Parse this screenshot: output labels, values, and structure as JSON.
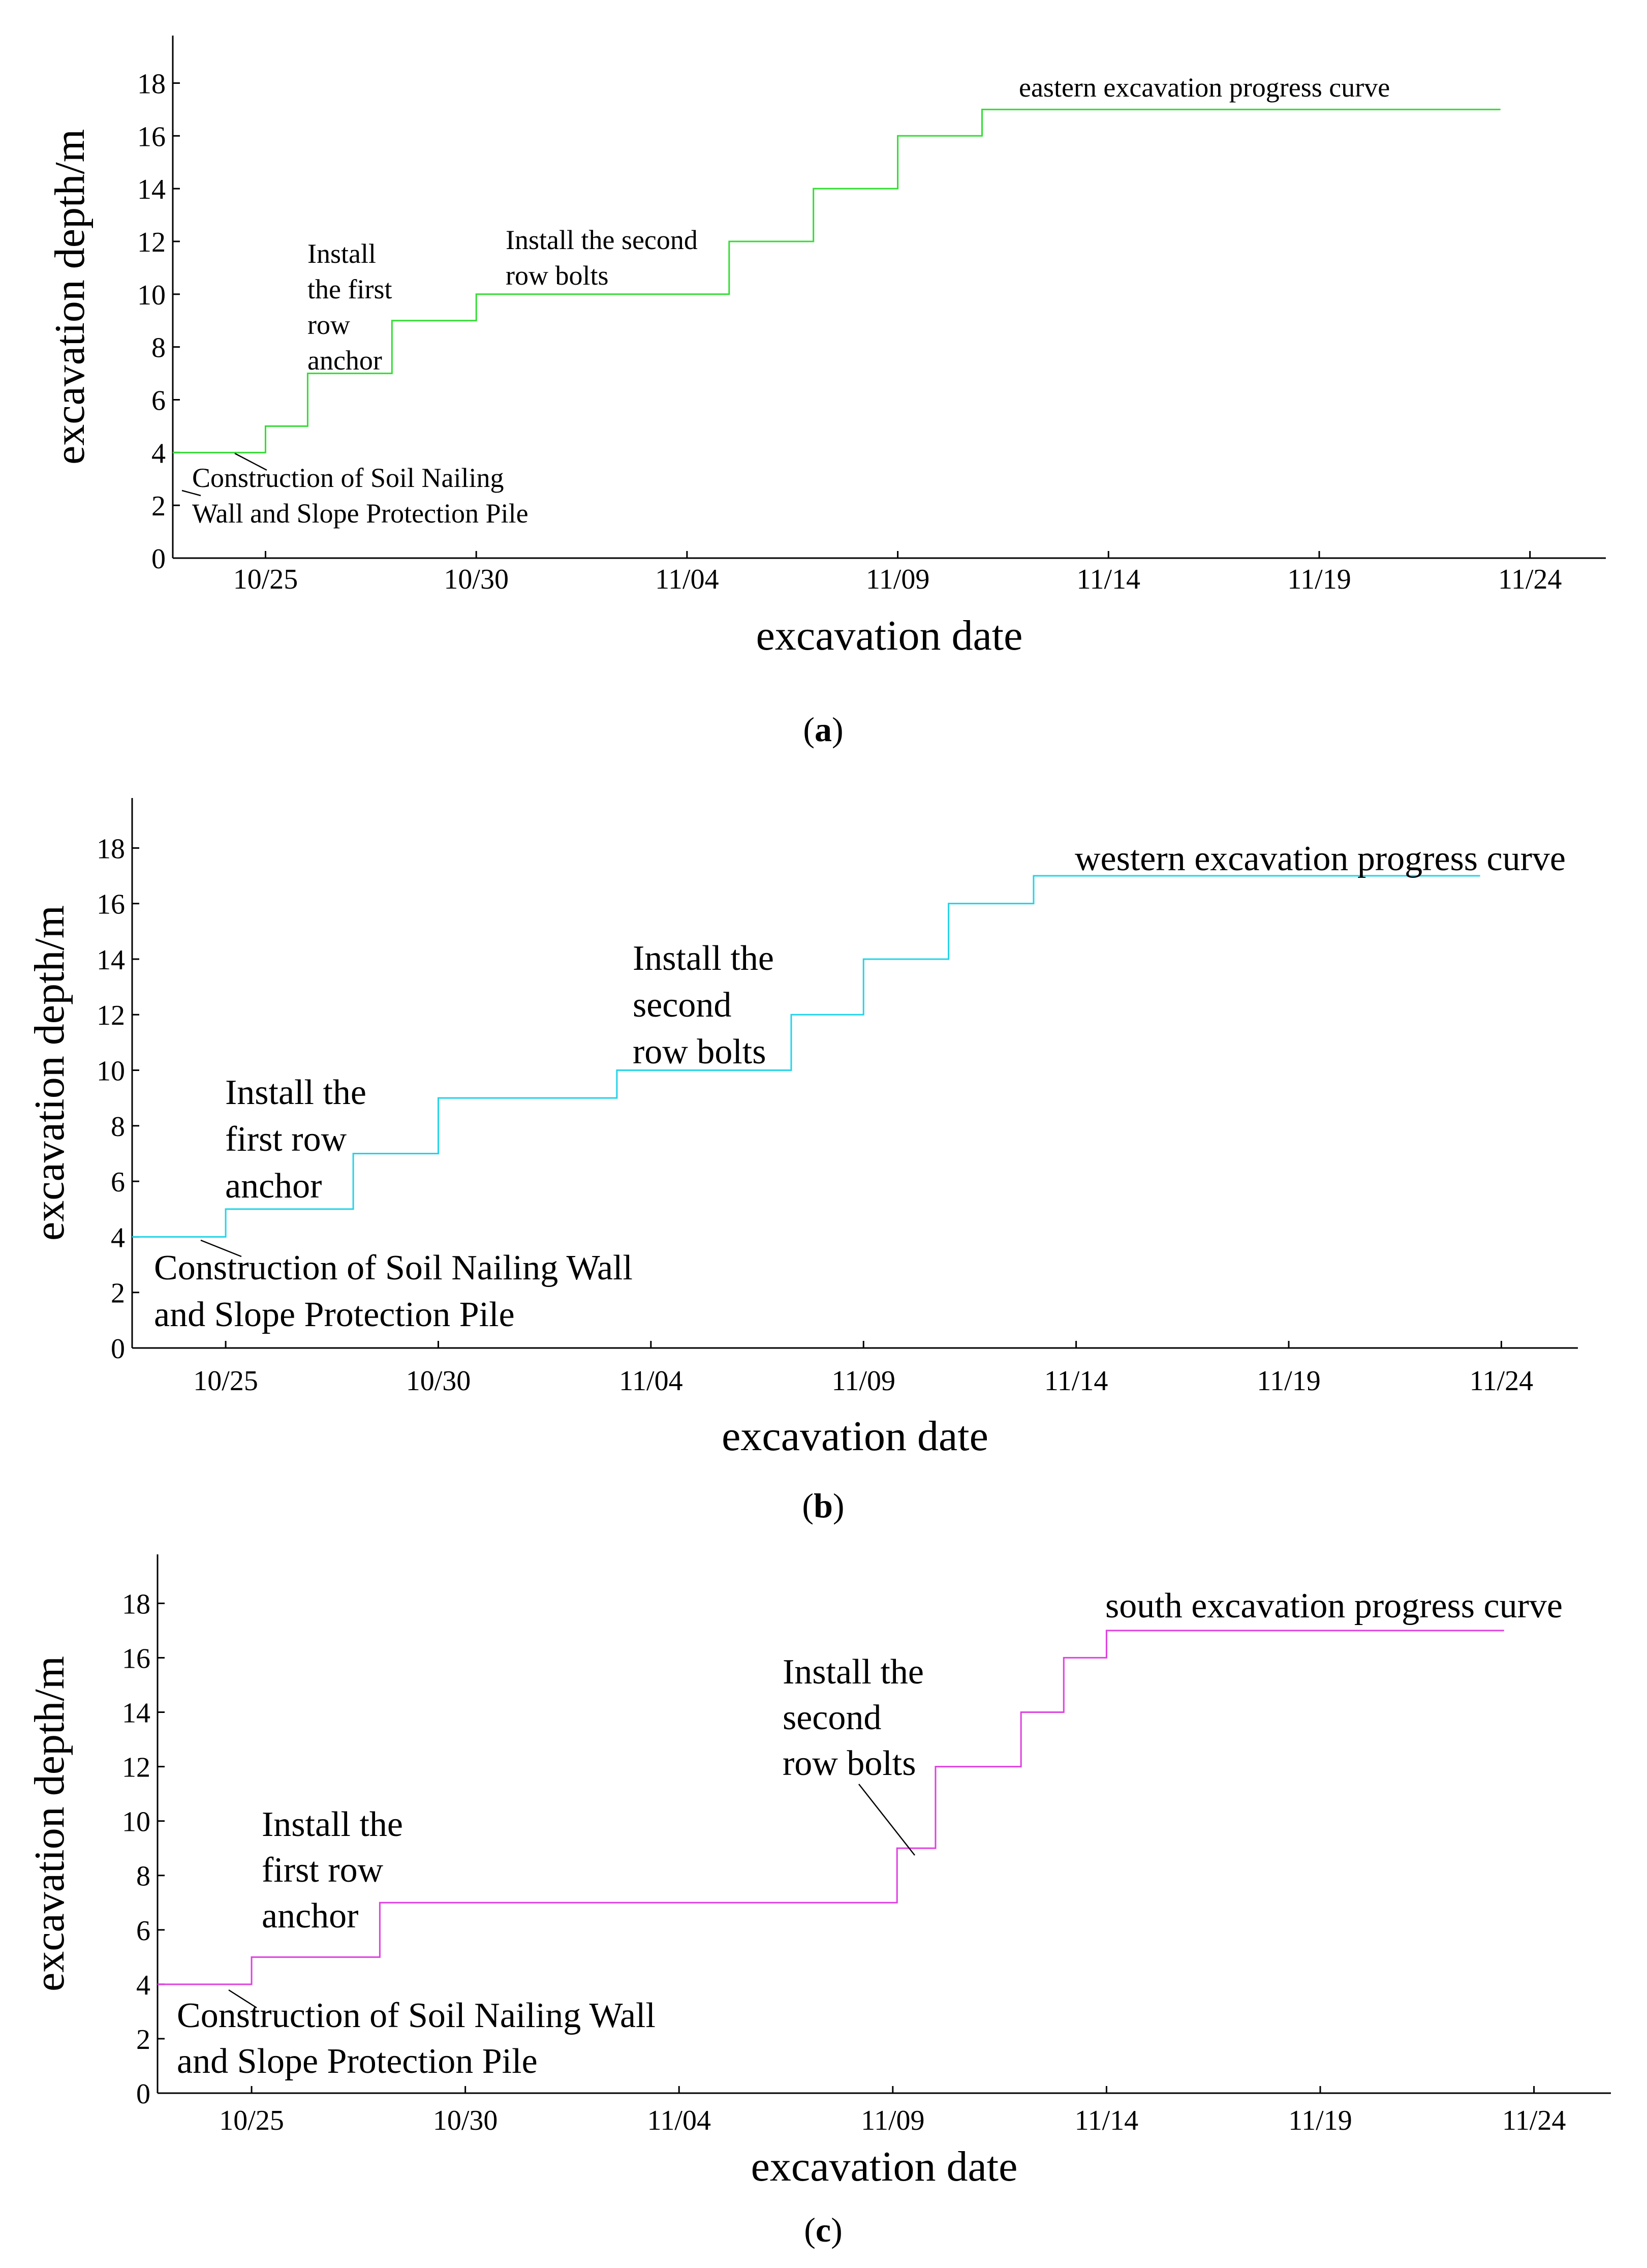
{
  "figure": {
    "panel_labels": [
      {
        "open": "(",
        "letter": "a",
        "close": ")"
      },
      {
        "open": "(",
        "letter": "b",
        "close": ")"
      },
      {
        "open": "(",
        "letter": "c",
        "close": ")"
      }
    ]
  },
  "chart_data": [
    {
      "type": "line",
      "step": "post",
      "panel": "a",
      "xlabel": "excavation date",
      "ylabel": "excavation depth/m",
      "x_unit": "days since 10/25",
      "xlim": [
        -2.2,
        31.8
      ],
      "ylim": [
        0,
        19.8
      ],
      "xticks": [
        0,
        5,
        10,
        15,
        20,
        25,
        30
      ],
      "xtick_labels": [
        "10/25",
        "10/30",
        "11/04",
        "11/09",
        "11/14",
        "11/19",
        "11/24"
      ],
      "yticks": [
        0,
        2,
        4,
        6,
        8,
        10,
        12,
        14,
        16,
        18
      ],
      "ytick_labels": [
        "0",
        "2",
        "4",
        "6",
        "8",
        "10",
        "12",
        "14",
        "16",
        "18"
      ],
      "series": [
        {
          "name": "eastern excavation progress curve",
          "color": "#33dd33",
          "x": [
            -2.2,
            0,
            1,
            3,
            5,
            11,
            13,
            15,
            17,
            29.3
          ],
          "y": [
            4,
            5,
            7,
            9,
            10,
            12,
            14,
            16,
            17,
            17
          ]
        }
      ],
      "annotations": {
        "curve": [
          "eastern  excavation progress curve"
        ],
        "first_row": [
          "Install",
          "the first",
          "row",
          "anchor"
        ],
        "second_row": [
          "Install the second",
          "row bolts"
        ],
        "construction": [
          "Construction of Soil Nailing",
          "Wall and Slope Protection Pile"
        ]
      }
    },
    {
      "type": "line",
      "step": "post",
      "panel": "b",
      "xlabel": "excavation date",
      "ylabel": "excavation depth/m",
      "x_unit": "days since 10/25",
      "xlim": [
        -2.2,
        31.8
      ],
      "ylim": [
        0,
        19.8
      ],
      "xticks": [
        0,
        5,
        10,
        15,
        20,
        25,
        30
      ],
      "xtick_labels": [
        "10/25",
        "10/30",
        "11/04",
        "11/09",
        "11/14",
        "11/19",
        "11/24"
      ],
      "yticks": [
        0,
        2,
        4,
        6,
        8,
        10,
        12,
        14,
        16,
        18
      ],
      "ytick_labels": [
        "0",
        "2",
        "4",
        "6",
        "8",
        "10",
        "12",
        "14",
        "16",
        "18"
      ],
      "series": [
        {
          "name": "western excavation progress curve",
          "color": "#22d4e8",
          "x": [
            -2.2,
            0,
            3,
            5,
            9.2,
            13.3,
            15,
            17,
            19,
            29.5
          ],
          "y": [
            4,
            5,
            7,
            9,
            10,
            12,
            14,
            16,
            17,
            17
          ]
        }
      ],
      "annotations": {
        "curve": [
          "western excavation progress curve"
        ],
        "first_row": [
          "Install the",
          "first row",
          "anchor"
        ],
        "second_row": [
          "Install the",
          "second",
          "row bolts"
        ],
        "construction": [
          "Construction of Soil Nailing Wall",
          "and Slope Protection Pile"
        ]
      }
    },
    {
      "type": "line",
      "step": "post",
      "panel": "c",
      "xlabel": "excavation date",
      "ylabel": "excavation depth/m",
      "x_unit": "days since 10/25",
      "xlim": [
        -2.2,
        31.8
      ],
      "ylim": [
        0,
        19.8
      ],
      "xticks": [
        0,
        5,
        10,
        15,
        20,
        25,
        30
      ],
      "xtick_labels": [
        "10/25",
        "10/30",
        "11/04",
        "11/09",
        "11/14",
        "11/19",
        "11/24"
      ],
      "yticks": [
        0,
        2,
        4,
        6,
        8,
        10,
        12,
        14,
        16,
        18
      ],
      "ytick_labels": [
        "0",
        "2",
        "4",
        "6",
        "8",
        "10",
        "12",
        "14",
        "16",
        "18"
      ],
      "series": [
        {
          "name": "south excavation progress curve",
          "color": "#e040e0",
          "x": [
            -2.2,
            0,
            3,
            15.1,
            16,
            18,
            19,
            20,
            29.3
          ],
          "y": [
            4,
            5,
            7,
            9,
            12,
            14,
            16,
            17,
            17
          ]
        }
      ],
      "annotations": {
        "curve": [
          "south excavation progress curve"
        ],
        "first_row": [
          "Install the",
          "first row",
          "anchor"
        ],
        "second_row": [
          "Install the",
          "second",
          "row bolts"
        ],
        "construction": [
          "Construction of Soil Nailing Wall",
          "and Slope Protection Pile"
        ]
      }
    }
  ]
}
